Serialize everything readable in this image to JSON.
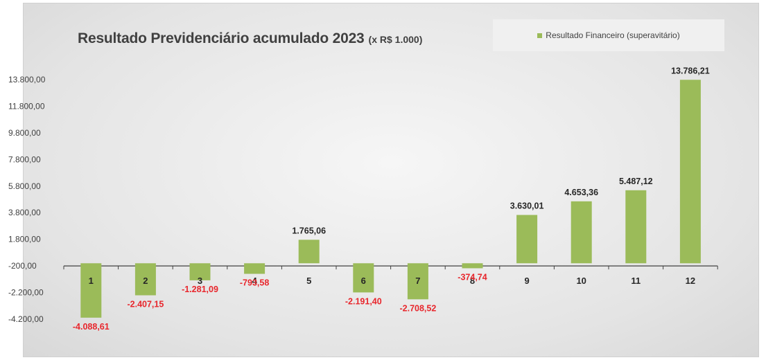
{
  "chart_data": {
    "type": "bar",
    "title": "Resultado Previdenciário acumulado 2023",
    "subtitle": "(x R$ 1.000)",
    "legend": {
      "label": "Resultado Financeiro (superavitário)",
      "position": "top-right",
      "color": "#9bbb59"
    },
    "categories": [
      "1",
      "2",
      "3",
      "4",
      "5",
      "6",
      "7",
      "8",
      "9",
      "10",
      "11",
      "12"
    ],
    "series": [
      {
        "name": "Resultado Financeiro (superavitário)",
        "values": [
          -4088.61,
          -2407.15,
          -1281.09,
          -793.58,
          1765.06,
          -2191.4,
          -2708.52,
          -374.74,
          3630.01,
          4653.36,
          5487.12,
          13786.21
        ],
        "labels": [
          "-4.088,61",
          "-2.407,15",
          "-1.281,09",
          "-793,58",
          "1.765,06",
          "-2.191,40",
          "-2.708,52",
          "-374,74",
          "3.630,01",
          "4.653,36",
          "5.487,12",
          "13.786,21"
        ]
      }
    ],
    "y_ticks": [
      13800,
      11800,
      9800,
      7800,
      5800,
      3800,
      1800,
      -200,
      -2200,
      -4200
    ],
    "y_tick_labels": [
      "13.800,00",
      "11.800,00",
      "9.800,00",
      "7.800,00",
      "5.800,00",
      "3.800,00",
      "1.800,00",
      "-200,00",
      "-2.200,00",
      "-4.200,00"
    ],
    "ylim": [
      -4200,
      13800
    ],
    "grid": false,
    "colors": {
      "bar": "#9bbb59",
      "negative_label": "#e8262c"
    }
  }
}
